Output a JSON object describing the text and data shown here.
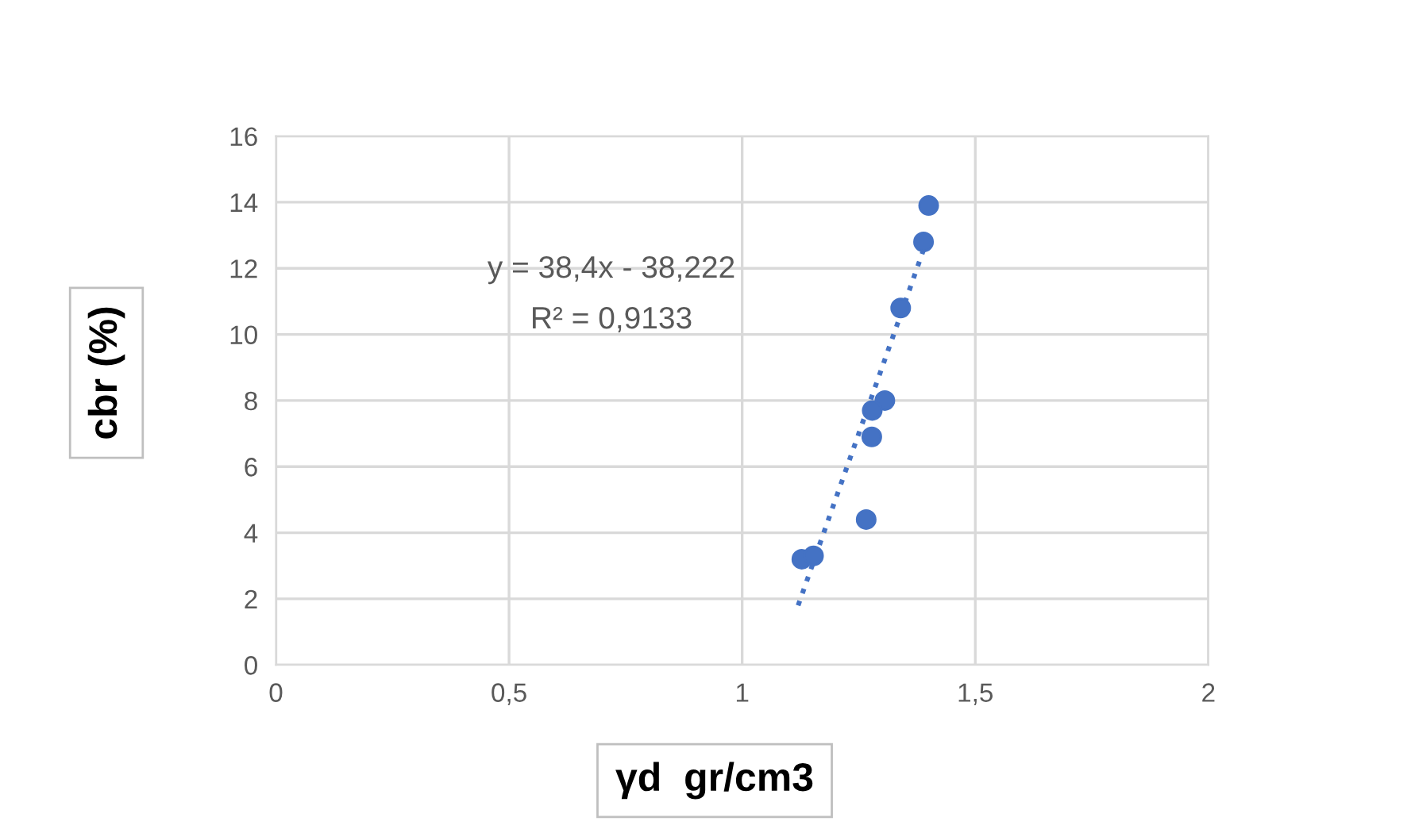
{
  "chart_data": {
    "type": "scatter",
    "xlabel": "γd  gr/cm3",
    "ylabel": "cbr (%)",
    "annotations": [
      "y = 38,4x - 38,222",
      "R² = 0,9133"
    ],
    "series": [
      {
        "color": "#4472c4",
        "marker": "circle",
        "x": [
          1.4,
          1.389,
          1.34,
          1.306,
          1.279,
          1.278,
          1.266,
          1.128,
          1.153
        ],
        "values": [
          13.9,
          12.8,
          10.8,
          8.0,
          7.7,
          6.9,
          4.4,
          3.2,
          3.3
        ]
      },
      {
        "type": "line",
        "color": "#4472c4",
        "line_style": "dotted",
        "x": [
          1.12,
          1.4
        ],
        "values": [
          1.8,
          13.0
        ]
      }
    ],
    "xlim": [
      0,
      2
    ],
    "xticks": [
      0,
      {
        "value": 0.5,
        "label": "0,5"
      },
      1,
      {
        "value": 1.5,
        "label": "1,5"
      },
      2
    ],
    "ylim": [
      0,
      16
    ],
    "yticks": [
      0,
      2,
      4,
      6,
      8,
      10,
      12,
      14,
      16
    ],
    "grid": true,
    "legend": false
  }
}
